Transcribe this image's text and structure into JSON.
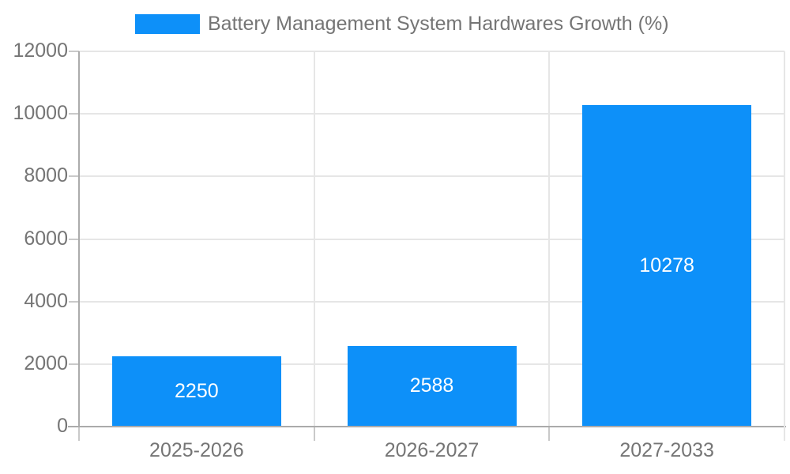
{
  "legend": {
    "label": "Battery Management System Hardwares Growth (%)"
  },
  "chart_data": {
    "type": "bar",
    "title": "Battery Management System Hardwares Growth (%)",
    "categories": [
      "2025-2026",
      "2026-2027",
      "2027-2033"
    ],
    "values": [
      2250,
      2588,
      10278
    ],
    "bar_labels": [
      "2250",
      "2588",
      "10278"
    ],
    "xlabel": "",
    "ylabel": "",
    "ylim": [
      0,
      12000
    ],
    "ytick_step": 2000,
    "ytick_labels": [
      "0",
      "2000",
      "4000",
      "6000",
      "8000",
      "10000",
      "12000"
    ],
    "grid": true,
    "legend_position": "top",
    "colors": {
      "bar": "#0d90f9",
      "bar_label_text": "#ffffff",
      "axis_text": "#757575",
      "gridline": "#e6e6e6",
      "axis_line": "#ababab",
      "tick": "#c9c9c9",
      "background": "#ffffff"
    }
  }
}
